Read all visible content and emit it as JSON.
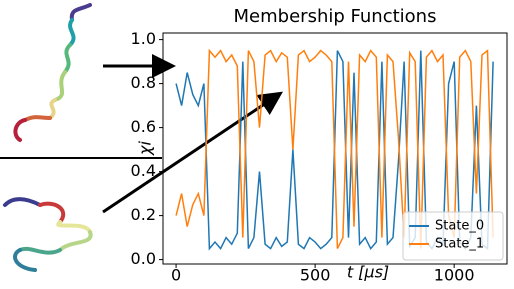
{
  "chart_data": {
    "type": "line",
    "title": "Membership Functions",
    "xlabel": "t [μs]",
    "ylabel": "χi",
    "xlim": [
      -47,
      1190
    ],
    "ylim": [
      -0.02,
      1.03
    ],
    "xticks": [
      0,
      500,
      1000
    ],
    "yticks": [
      {
        "value": 0,
        "label": "0.0"
      },
      0.2,
      0.4,
      0.6,
      0.8,
      {
        "value": 1,
        "label": "1.0"
      }
    ],
    "legend": "lower right",
    "x": [
      0,
      20,
      40,
      60,
      80,
      100,
      120,
      140,
      160,
      180,
      200,
      220,
      240,
      260,
      280,
      300,
      320,
      340,
      360,
      380,
      400,
      420,
      440,
      460,
      480,
      500,
      520,
      540,
      560,
      580,
      600,
      620,
      640,
      660,
      680,
      700,
      720,
      740,
      760,
      780,
      800,
      820,
      840,
      860,
      880,
      900,
      920,
      940,
      960,
      980,
      1000,
      1020,
      1040,
      1060,
      1080,
      1100,
      1120,
      1140
    ],
    "series": [
      {
        "name": "State_0",
        "color": "#1f77b4",
        "values": [
          0.8,
          0.7,
          0.85,
          0.75,
          0.7,
          0.8,
          0.05,
          0.08,
          0.05,
          0.1,
          0.07,
          0.12,
          0.9,
          0.05,
          0.1,
          0.4,
          0.07,
          0.05,
          0.1,
          0.06,
          0.08,
          0.5,
          0.07,
          0.05,
          0.1,
          0.08,
          0.05,
          0.07,
          0.1,
          0.95,
          0.9,
          0.1,
          0.85,
          0.07,
          0.1,
          0.05,
          0.08,
          0.9,
          0.07,
          0.1,
          0.45,
          0.9,
          0.06,
          0.1,
          0.95,
          0.08,
          0.05,
          0.1,
          0.07,
          0.8,
          0.9,
          0.08,
          0.05,
          0.1,
          0.7,
          0.07,
          0.05,
          0.9
        ]
      },
      {
        "name": "State_1",
        "color": "#ff7f0e",
        "values": [
          0.2,
          0.3,
          0.15,
          0.25,
          0.3,
          0.2,
          0.95,
          0.92,
          0.95,
          0.9,
          0.93,
          0.88,
          0.1,
          0.95,
          0.9,
          0.6,
          0.93,
          0.95,
          0.9,
          0.94,
          0.92,
          0.5,
          0.93,
          0.95,
          0.9,
          0.92,
          0.95,
          0.93,
          0.9,
          0.05,
          0.1,
          0.9,
          0.15,
          0.93,
          0.9,
          0.95,
          0.92,
          0.1,
          0.93,
          0.9,
          0.55,
          0.1,
          0.94,
          0.9,
          0.05,
          0.92,
          0.95,
          0.9,
          0.93,
          0.2,
          0.1,
          0.92,
          0.95,
          0.9,
          0.3,
          0.93,
          0.95,
          0.1
        ]
      }
    ]
  }
}
